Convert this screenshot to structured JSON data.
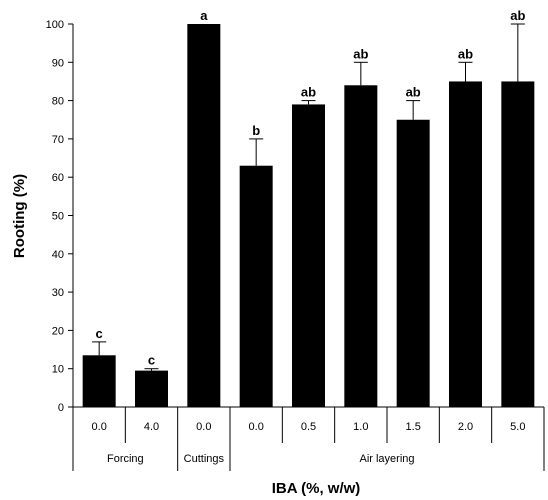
{
  "chart_data": {
    "type": "bar",
    "xlabel": "IBA (%, w/w)",
    "ylabel": "Rooting (%)",
    "ylim": [
      0,
      100
    ],
    "yticks": [
      0,
      10,
      20,
      30,
      40,
      50,
      60,
      70,
      80,
      90,
      100
    ],
    "bar_color": "#000000",
    "grid": false,
    "bars": [
      {
        "category": "0.0",
        "group": "Forcing",
        "value": 13.5,
        "error": 3.5,
        "label": "c"
      },
      {
        "category": "4.0",
        "group": "Forcing",
        "value": 9.5,
        "error": 0.5,
        "label": "c"
      },
      {
        "category": "0.0",
        "group": "Cuttings",
        "value": 100,
        "error": 0,
        "label": "a"
      },
      {
        "category": "0.0",
        "group": "Air layering",
        "value": 63,
        "error": 7,
        "label": "b"
      },
      {
        "category": "0.5",
        "group": "Air layering",
        "value": 79,
        "error": 1,
        "label": "ab"
      },
      {
        "category": "1.0",
        "group": "Air layering",
        "value": 84,
        "error": 6,
        "label": "ab"
      },
      {
        "category": "1.5",
        "group": "Air layering",
        "value": 75,
        "error": 5,
        "label": "ab"
      },
      {
        "category": "2.0",
        "group": "Air layering",
        "value": 85,
        "error": 5,
        "label": "ab"
      },
      {
        "category": "5.0",
        "group": "Air layering",
        "value": 85,
        "error": 15,
        "label": "ab"
      }
    ],
    "groups": [
      {
        "name": "Forcing",
        "count": 2
      },
      {
        "name": "Cuttings",
        "count": 1
      },
      {
        "name": "Air layering",
        "count": 6
      }
    ]
  }
}
